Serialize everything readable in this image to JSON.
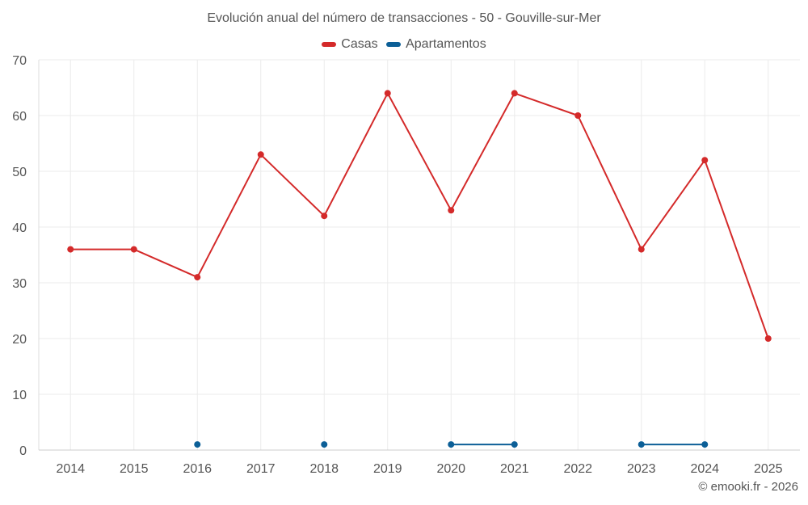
{
  "chart_data": {
    "type": "line",
    "title": "Evolución anual del número de transacciones - 50 - Gouville-sur-Mer",
    "categories": [
      "2014",
      "2015",
      "2016",
      "2017",
      "2018",
      "2019",
      "2020",
      "2021",
      "2022",
      "2023",
      "2024",
      "2025"
    ],
    "ylim": [
      0,
      70
    ],
    "yticks": [
      0,
      10,
      20,
      30,
      40,
      50,
      60,
      70
    ],
    "grid": true,
    "legend_position": "top-center",
    "series": [
      {
        "name": "Casas",
        "color": "#d42a2a",
        "values": [
          36,
          36,
          31,
          53,
          42,
          64,
          43,
          64,
          60,
          36,
          52,
          20
        ]
      },
      {
        "name": "Apartamentos",
        "color": "#0c5f97",
        "values": [
          null,
          null,
          1,
          null,
          1,
          null,
          1,
          1,
          null,
          1,
          1,
          null
        ]
      }
    ]
  },
  "credit": "© emooki.fr - 2026"
}
